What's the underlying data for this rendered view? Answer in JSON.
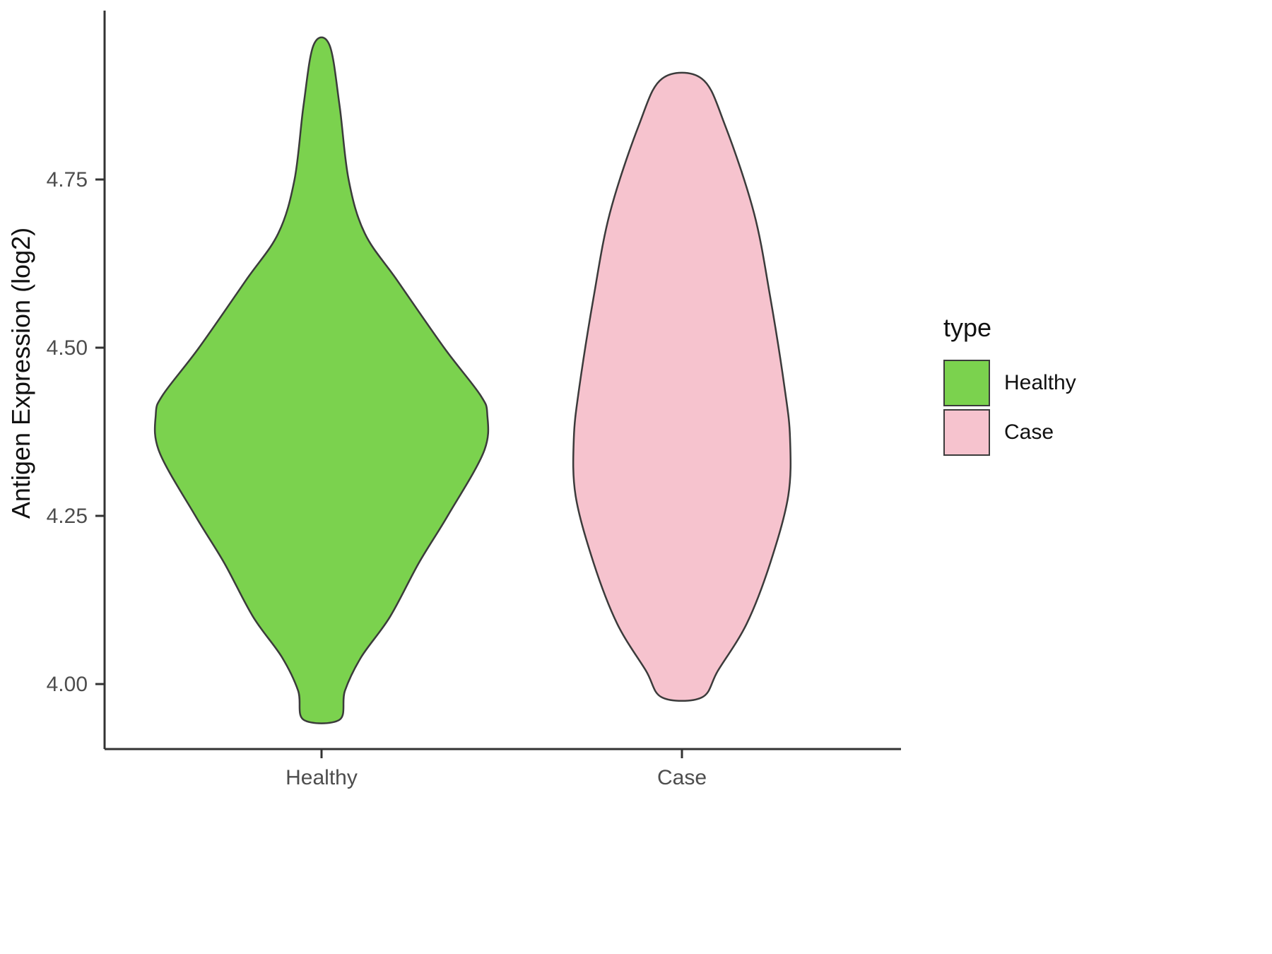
{
  "chart_data": {
    "type": "violin",
    "title": "",
    "xlabel": "",
    "ylabel": "Antigen Expression (log2)",
    "categories": [
      "Healthy",
      "Case"
    ],
    "ylim": [
      3.88,
      5.0
    ],
    "yticks": [
      "4.00",
      "4.25",
      "4.50",
      "4.75"
    ],
    "ytick_values": [
      4.0,
      4.25,
      4.5,
      4.75
    ],
    "grid": "off",
    "outline_color": "#3b3b3b",
    "axis_color": "#333333",
    "tick_label_color": "#4d4d4d",
    "legend": {
      "title": "type",
      "position": "right",
      "entries": [
        {
          "label": "Healthy",
          "color": "#7bd24e"
        },
        {
          "label": "Case",
          "color": "#f6c3ce"
        }
      ]
    },
    "series": [
      {
        "name": "Healthy",
        "color": "#7bd24e",
        "profile": [
          [
            3.947,
            0.05
          ],
          [
            3.99,
            0.065
          ],
          [
            4.04,
            0.11
          ],
          [
            4.1,
            0.19
          ],
          [
            4.18,
            0.27
          ],
          [
            4.25,
            0.35
          ],
          [
            4.345,
            0.45
          ],
          [
            4.4,
            0.46
          ],
          [
            4.43,
            0.44
          ],
          [
            4.5,
            0.34
          ],
          [
            4.6,
            0.21
          ],
          [
            4.67,
            0.12
          ],
          [
            4.75,
            0.075
          ],
          [
            4.86,
            0.05
          ],
          [
            4.95,
            0.022
          ]
        ]
      },
      {
        "name": "Case",
        "color": "#f6c3ce",
        "profile": [
          [
            3.98,
            0.055
          ],
          [
            4.02,
            0.1
          ],
          [
            4.09,
            0.18
          ],
          [
            4.18,
            0.245
          ],
          [
            4.28,
            0.295
          ],
          [
            4.365,
            0.3
          ],
          [
            4.44,
            0.285
          ],
          [
            4.575,
            0.245
          ],
          [
            4.7,
            0.2
          ],
          [
            4.83,
            0.12
          ],
          [
            4.9,
            0.055
          ]
        ]
      }
    ]
  }
}
